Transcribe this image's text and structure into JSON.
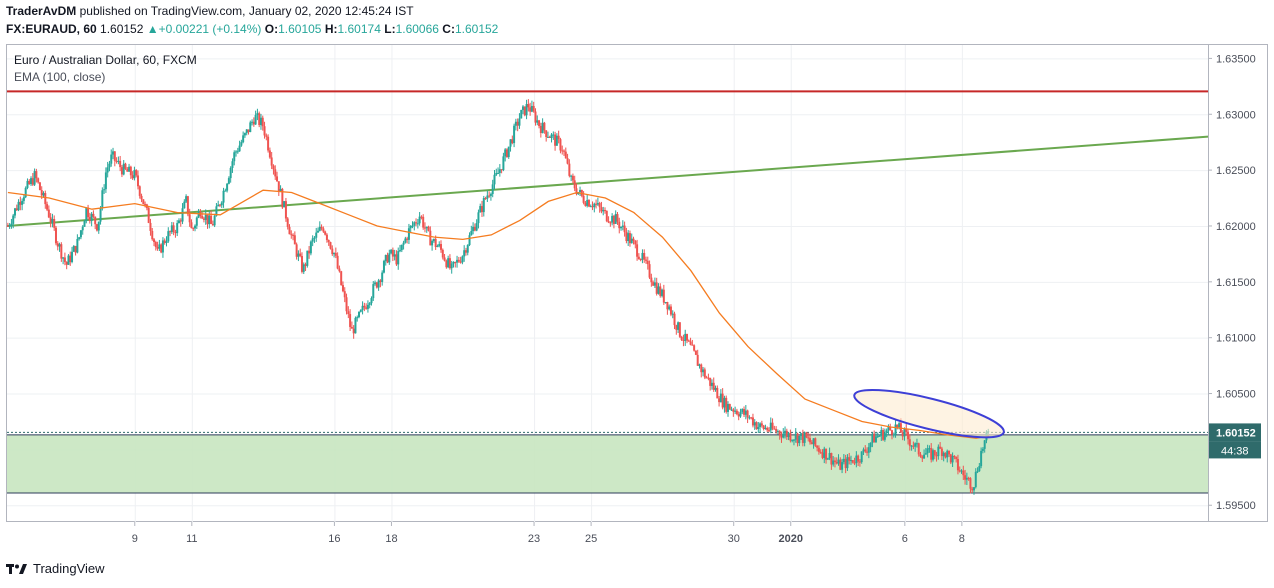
{
  "header": {
    "author": "TraderAvDM",
    "published_text": "published on TradingView.com, January 02, 2020 12:45:24 IST",
    "symbol": "FX:EURAUD, 60",
    "last": "1.60152",
    "change_arrow": "▲",
    "change": "+0.00221 (+0.14%)",
    "o_label": "O:",
    "o_value": "1.60105",
    "h_label": "H:",
    "h_value": "1.60174",
    "l_label": "L:",
    "l_value": "1.60066",
    "c_label": "C:",
    "c_value": "1.60152"
  },
  "legend": {
    "title": "Euro / Australian Dollar, 60, FXCM",
    "indicator": "EMA (100, close)"
  },
  "footer": {
    "brand": "TradingView",
    "logo_icon": "tradingview-logo-icon"
  },
  "colors": {
    "up": "#26a69a",
    "down": "#ef5350",
    "ema": "#f57c20",
    "resistance": "#c62828",
    "trendline": "#6aa84f",
    "zone_fill": "#c8e6c0",
    "ellipse_stroke": "#3d3fd6",
    "ellipse_fill": "#fdebd0",
    "price_label": "#2f6b6b"
  },
  "chart_data": {
    "type": "candlestick",
    "title": "Euro / Australian Dollar, 60, FXCM",
    "y_ticks": [
      1.635,
      1.63,
      1.625,
      1.62,
      1.615,
      1.61,
      1.605,
      1.6,
      1.595
    ],
    "y_tick_labels": [
      "1.63500",
      "1.63000",
      "1.62500",
      "1.62000",
      "1.61500",
      "1.61000",
      "1.60500",
      "1.60000",
      "1.59500"
    ],
    "ylim": [
      1.5935,
      1.6362
    ],
    "x_ticks": [
      "9",
      "11",
      "16",
      "18",
      "23",
      "25",
      "30",
      "2020",
      "6",
      "8"
    ],
    "x_tick_days": [
      9,
      11,
      16,
      18,
      23,
      25,
      30,
      32,
      36,
      38
    ],
    "xlim_days": [
      4.52,
      46.63
    ],
    "current_price": 1.60152,
    "current_price_label": "1.60152",
    "countdown_label": "44:38",
    "price_path": [
      [
        4.55,
        1.62
      ],
      [
        5.0,
        1.6225
      ],
      [
        5.5,
        1.6245
      ],
      [
        6.0,
        1.621
      ],
      [
        6.3,
        1.6185
      ],
      [
        6.6,
        1.6165
      ],
      [
        7.0,
        1.6185
      ],
      [
        7.3,
        1.6215
      ],
      [
        7.7,
        1.62
      ],
      [
        8.0,
        1.625
      ],
      [
        8.2,
        1.6262
      ],
      [
        8.6,
        1.625
      ],
      [
        9.0,
        1.6245
      ],
      [
        9.2,
        1.623
      ],
      [
        9.5,
        1.6205
      ],
      [
        9.8,
        1.6175
      ],
      [
        10.1,
        1.619
      ],
      [
        10.5,
        1.62
      ],
      [
        10.8,
        1.6222
      ],
      [
        11.0,
        1.6195
      ],
      [
        11.3,
        1.6215
      ],
      [
        11.7,
        1.62
      ],
      [
        12.1,
        1.623
      ],
      [
        12.5,
        1.6265
      ],
      [
        12.9,
        1.6282
      ],
      [
        13.2,
        1.6298
      ],
      [
        13.5,
        1.629
      ],
      [
        13.8,
        1.626
      ],
      [
        14.1,
        1.623
      ],
      [
        14.5,
        1.619
      ],
      [
        14.9,
        1.616
      ],
      [
        15.2,
        1.6185
      ],
      [
        15.6,
        1.62
      ],
      [
        16.0,
        1.6175
      ],
      [
        16.3,
        1.614
      ],
      [
        16.6,
        1.6105
      ],
      [
        16.9,
        1.612
      ],
      [
        17.2,
        1.6135
      ],
      [
        17.6,
        1.6155
      ],
      [
        17.9,
        1.6175
      ],
      [
        18.2,
        1.617
      ],
      [
        18.6,
        1.6195
      ],
      [
        19.0,
        1.621
      ],
      [
        19.3,
        1.619
      ],
      [
        19.7,
        1.618
      ],
      [
        20.1,
        1.616
      ],
      [
        20.5,
        1.6175
      ],
      [
        20.9,
        1.62
      ],
      [
        21.3,
        1.6225
      ],
      [
        21.7,
        1.6245
      ],
      [
        22.1,
        1.627
      ],
      [
        22.5,
        1.6298
      ],
      [
        22.8,
        1.6308
      ],
      [
        23.2,
        1.629
      ],
      [
        23.6,
        1.628
      ],
      [
        24.0,
        1.627
      ],
      [
        24.3,
        1.624
      ],
      [
        24.7,
        1.6225
      ],
      [
        25.1,
        1.622
      ],
      [
        25.5,
        1.621
      ],
      [
        25.9,
        1.6205
      ],
      [
        26.3,
        1.619
      ],
      [
        26.7,
        1.6175
      ],
      [
        27.0,
        1.616
      ],
      [
        27.3,
        1.6145
      ],
      [
        27.7,
        1.613
      ],
      [
        28.1,
        1.6105
      ],
      [
        28.5,
        1.609
      ],
      [
        28.9,
        1.607
      ],
      [
        29.3,
        1.6055
      ],
      [
        29.7,
        1.604
      ],
      [
        30.1,
        1.6035
      ],
      [
        30.5,
        1.603
      ],
      [
        30.9,
        1.602
      ],
      [
        31.3,
        1.6018
      ],
      [
        31.7,
        1.6015
      ],
      [
        32.1,
        1.6012
      ],
      [
        32.5,
        1.601
      ],
      [
        32.9,
        1.6002
      ],
      [
        33.3,
        1.5995
      ],
      [
        33.7,
        1.5985
      ],
      [
        34.1,
        1.599
      ],
      [
        34.5,
        1.5995
      ],
      [
        34.9,
        1.601
      ],
      [
        35.3,
        1.6015
      ],
      [
        35.7,
        1.602
      ],
      [
        36.1,
        1.601
      ],
      [
        36.5,
        1.5998
      ],
      [
        36.9,
        1.5995
      ],
      [
        37.3,
        1.6
      ],
      [
        37.7,
        1.599
      ],
      [
        38.1,
        1.5975
      ],
      [
        38.4,
        1.5968
      ],
      [
        38.7,
        1.6
      ],
      [
        38.95,
        1.60152
      ]
    ],
    "ema_path": [
      [
        4.55,
        1.623
      ],
      [
        6.0,
        1.6225
      ],
      [
        7.5,
        1.6215
      ],
      [
        9.0,
        1.622
      ],
      [
        10.5,
        1.6212
      ],
      [
        12.0,
        1.621
      ],
      [
        13.5,
        1.6232
      ],
      [
        14.5,
        1.623
      ],
      [
        15.5,
        1.622
      ],
      [
        16.5,
        1.621
      ],
      [
        17.5,
        1.62
      ],
      [
        18.5,
        1.6195
      ],
      [
        19.5,
        1.619
      ],
      [
        20.5,
        1.6188
      ],
      [
        21.5,
        1.6192
      ],
      [
        22.5,
        1.6205
      ],
      [
        23.5,
        1.6222
      ],
      [
        24.5,
        1.623
      ],
      [
        25.5,
        1.6225
      ],
      [
        26.5,
        1.6212
      ],
      [
        27.5,
        1.619
      ],
      [
        28.5,
        1.616
      ],
      [
        29.5,
        1.6122
      ],
      [
        30.5,
        1.6092
      ],
      [
        31.5,
        1.6068
      ],
      [
        32.5,
        1.6045
      ],
      [
        33.5,
        1.6035
      ],
      [
        34.5,
        1.6025
      ],
      [
        35.5,
        1.602
      ],
      [
        36.5,
        1.6017
      ],
      [
        37.5,
        1.6013
      ],
      [
        38.5,
        1.601
      ],
      [
        38.95,
        1.6012
      ]
    ],
    "drawings": {
      "resistance_level": 1.63205,
      "trendline": [
        [
          4.52,
          1.62
        ],
        [
          46.63,
          1.628
        ]
      ],
      "support_zone": [
        1.5961,
        1.6013
      ],
      "ellipse_center": [
        36.85,
        1.6032
      ],
      "ellipse_radii_days_price": [
        2.7,
        0.00135
      ],
      "ellipse_rotation_deg": 14
    }
  }
}
